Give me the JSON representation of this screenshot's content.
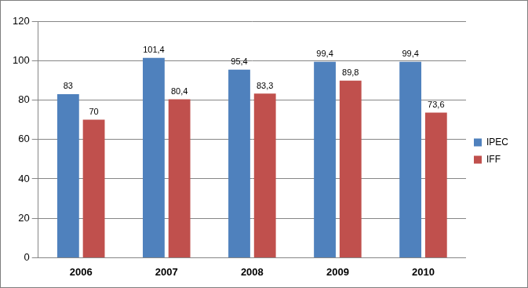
{
  "chart_data": {
    "type": "bar",
    "categories": [
      "2006",
      "2007",
      "2008",
      "2009",
      "2010"
    ],
    "series": [
      {
        "name": "IPEC",
        "color": "#4F81BD",
        "values": [
          83,
          101.4,
          95.4,
          99.4,
          99.4
        ],
        "value_labels": [
          "83",
          "101,4",
          "95,4",
          "99,4",
          "99,4"
        ]
      },
      {
        "name": "IFF",
        "color": "#C0504D",
        "values": [
          70,
          80.4,
          83.3,
          89.8,
          73.6
        ],
        "value_labels": [
          "70",
          "80,4",
          "83,3",
          "89,8",
          "73,6"
        ]
      }
    ],
    "ylim": [
      0,
      120
    ],
    "yticks": [
      0,
      20,
      40,
      60,
      80,
      100,
      120
    ],
    "grid": true,
    "legend": "right",
    "data_labels": true
  }
}
